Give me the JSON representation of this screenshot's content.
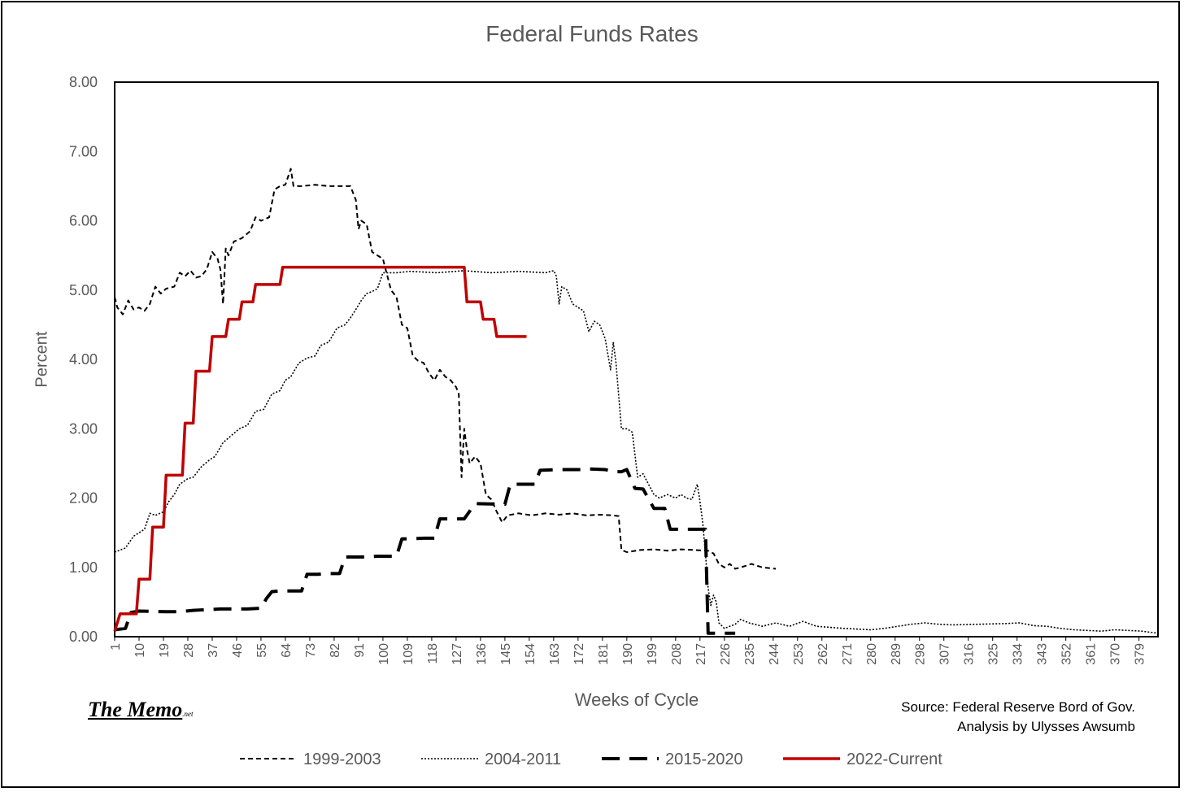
{
  "chart_data": {
    "type": "line",
    "title": "Federal Funds Rates",
    "xlabel": "Weeks of Cycle",
    "ylabel": "Percent",
    "xlim": [
      1,
      386
    ],
    "ylim": [
      0,
      8
    ],
    "y_ticks": [
      "0.00",
      "1.00",
      "2.00",
      "3.00",
      "4.00",
      "5.00",
      "6.00",
      "7.00",
      "8.00"
    ],
    "x_ticks": [
      1,
      10,
      19,
      28,
      37,
      46,
      55,
      64,
      73,
      82,
      91,
      100,
      109,
      118,
      127,
      136,
      145,
      154,
      163,
      172,
      181,
      190,
      199,
      208,
      217,
      226,
      235,
      244,
      253,
      262,
      271,
      280,
      289,
      298,
      307,
      316,
      325,
      334,
      343,
      352,
      361,
      370,
      379
    ],
    "grid": false,
    "legend_position": "bottom",
    "series": [
      {
        "name": "1999-2003",
        "style": "short-dash",
        "color": "#000000",
        "points": [
          [
            1,
            4.9
          ],
          [
            2,
            4.75
          ],
          [
            4,
            4.65
          ],
          [
            6,
            4.85
          ],
          [
            8,
            4.72
          ],
          [
            10,
            4.75
          ],
          [
            12,
            4.7
          ],
          [
            14,
            4.8
          ],
          [
            16,
            5.05
          ],
          [
            18,
            4.95
          ],
          [
            20,
            5.02
          ],
          [
            23,
            5.05
          ],
          [
            25,
            5.25
          ],
          [
            27,
            5.2
          ],
          [
            29,
            5.28
          ],
          [
            31,
            5.18
          ],
          [
            33,
            5.2
          ],
          [
            35,
            5.3
          ],
          [
            37,
            5.55
          ],
          [
            39,
            5.45
          ],
          [
            40,
            5.3
          ],
          [
            41,
            4.8
          ],
          [
            42,
            5.6
          ],
          [
            43,
            5.5
          ],
          [
            45,
            5.7
          ],
          [
            48,
            5.75
          ],
          [
            51,
            5.85
          ],
          [
            53,
            6.05
          ],
          [
            55,
            6.0
          ],
          [
            58,
            6.05
          ],
          [
            60,
            6.45
          ],
          [
            62,
            6.5
          ],
          [
            64,
            6.52
          ],
          [
            66,
            6.75
          ],
          [
            67,
            6.5
          ],
          [
            70,
            6.5
          ],
          [
            75,
            6.52
          ],
          [
            80,
            6.5
          ],
          [
            85,
            6.5
          ],
          [
            88,
            6.5
          ],
          [
            90,
            6.3
          ],
          [
            91,
            5.88
          ],
          [
            92,
            6.0
          ],
          [
            94,
            5.95
          ],
          [
            96,
            5.55
          ],
          [
            98,
            5.5
          ],
          [
            100,
            5.45
          ],
          [
            101,
            5.3
          ],
          [
            103,
            5.0
          ],
          [
            105,
            4.9
          ],
          [
            107,
            4.5
          ],
          [
            109,
            4.45
          ],
          [
            111,
            4.05
          ],
          [
            113,
            3.98
          ],
          [
            115,
            3.95
          ],
          [
            117,
            3.8
          ],
          [
            119,
            3.7
          ],
          [
            121,
            3.85
          ],
          [
            123,
            3.75
          ],
          [
            125,
            3.7
          ],
          [
            127,
            3.6
          ],
          [
            128,
            3.5
          ],
          [
            129,
            2.3
          ],
          [
            130,
            3.0
          ],
          [
            131,
            2.7
          ],
          [
            132,
            2.5
          ],
          [
            134,
            2.6
          ],
          [
            136,
            2.5
          ],
          [
            138,
            2.05
          ],
          [
            140,
            1.98
          ],
          [
            142,
            1.8
          ],
          [
            144,
            1.65
          ],
          [
            146,
            1.75
          ],
          [
            150,
            1.78
          ],
          [
            155,
            1.75
          ],
          [
            160,
            1.78
          ],
          [
            165,
            1.76
          ],
          [
            170,
            1.78
          ],
          [
            175,
            1.75
          ],
          [
            180,
            1.76
          ],
          [
            185,
            1.75
          ],
          [
            187,
            1.74
          ],
          [
            188,
            1.25
          ],
          [
            190,
            1.22
          ],
          [
            195,
            1.25
          ],
          [
            200,
            1.26
          ],
          [
            205,
            1.24
          ],
          [
            210,
            1.26
          ],
          [
            215,
            1.25
          ],
          [
            220,
            1.24
          ],
          [
            222,
            1.2
          ],
          [
            224,
            1.05
          ],
          [
            226,
            1.0
          ],
          [
            228,
            1.05
          ],
          [
            230,
            0.98
          ],
          [
            232,
            1.0
          ],
          [
            236,
            1.05
          ],
          [
            240,
            1.0
          ],
          [
            245,
            0.98
          ]
        ]
      },
      {
        "name": "2004-2011",
        "style": "dotted",
        "color": "#000000",
        "points": [
          [
            1,
            1.22
          ],
          [
            5,
            1.28
          ],
          [
            8,
            1.45
          ],
          [
            12,
            1.55
          ],
          [
            14,
            1.78
          ],
          [
            16,
            1.75
          ],
          [
            19,
            1.8
          ],
          [
            21,
            1.95
          ],
          [
            23,
            2.05
          ],
          [
            25,
            2.2
          ],
          [
            28,
            2.28
          ],
          [
            30,
            2.3
          ],
          [
            33,
            2.45
          ],
          [
            36,
            2.55
          ],
          [
            38,
            2.6
          ],
          [
            41,
            2.8
          ],
          [
            44,
            2.9
          ],
          [
            47,
            3.0
          ],
          [
            50,
            3.05
          ],
          [
            53,
            3.25
          ],
          [
            56,
            3.28
          ],
          [
            59,
            3.5
          ],
          [
            62,
            3.55
          ],
          [
            64,
            3.7
          ],
          [
            66,
            3.75
          ],
          [
            69,
            3.95
          ],
          [
            72,
            4.02
          ],
          [
            75,
            4.05
          ],
          [
            77,
            4.2
          ],
          [
            80,
            4.25
          ],
          [
            83,
            4.45
          ],
          [
            86,
            4.5
          ],
          [
            88,
            4.6
          ],
          [
            90,
            4.72
          ],
          [
            92,
            4.85
          ],
          [
            94,
            4.95
          ],
          [
            96,
            4.98
          ],
          [
            98,
            5.02
          ],
          [
            100,
            5.25
          ],
          [
            105,
            5.25
          ],
          [
            110,
            5.27
          ],
          [
            120,
            5.25
          ],
          [
            130,
            5.28
          ],
          [
            140,
            5.25
          ],
          [
            150,
            5.27
          ],
          [
            160,
            5.25
          ],
          [
            163,
            5.28
          ],
          [
            164,
            5.2
          ],
          [
            165,
            4.8
          ],
          [
            166,
            5.05
          ],
          [
            168,
            5.0
          ],
          [
            170,
            4.8
          ],
          [
            172,
            4.75
          ],
          [
            174,
            4.7
          ],
          [
            176,
            4.4
          ],
          [
            178,
            4.55
          ],
          [
            180,
            4.5
          ],
          [
            182,
            4.3
          ],
          [
            184,
            3.85
          ],
          [
            185,
            4.25
          ],
          [
            186,
            3.95
          ],
          [
            188,
            3.0
          ],
          [
            190,
            3.0
          ],
          [
            192,
            2.95
          ],
          [
            194,
            2.3
          ],
          [
            196,
            2.35
          ],
          [
            198,
            2.2
          ],
          [
            200,
            2.05
          ],
          [
            202,
            2.0
          ],
          [
            205,
            2.05
          ],
          [
            208,
            2.0
          ],
          [
            210,
            2.05
          ],
          [
            212,
            2.0
          ],
          [
            214,
            1.98
          ],
          [
            216,
            2.2
          ],
          [
            217,
            1.95
          ],
          [
            218,
            1.65
          ],
          [
            219,
            1.2
          ],
          [
            220,
            0.7
          ],
          [
            221,
            0.45
          ],
          [
            222,
            0.6
          ],
          [
            223,
            0.5
          ],
          [
            224,
            0.2
          ],
          [
            226,
            0.12
          ],
          [
            228,
            0.15
          ],
          [
            230,
            0.18
          ],
          [
            232,
            0.25
          ],
          [
            235,
            0.2
          ],
          [
            240,
            0.15
          ],
          [
            245,
            0.2
          ],
          [
            250,
            0.15
          ],
          [
            255,
            0.22
          ],
          [
            260,
            0.15
          ],
          [
            270,
            0.12
          ],
          [
            280,
            0.1
          ],
          [
            285,
            0.12
          ],
          [
            290,
            0.15
          ],
          [
            295,
            0.18
          ],
          [
            300,
            0.2
          ],
          [
            305,
            0.18
          ],
          [
            310,
            0.17
          ],
          [
            320,
            0.18
          ],
          [
            330,
            0.19
          ],
          [
            335,
            0.2
          ],
          [
            340,
            0.16
          ],
          [
            345,
            0.15
          ],
          [
            350,
            0.12
          ],
          [
            355,
            0.1
          ],
          [
            360,
            0.09
          ],
          [
            365,
            0.08
          ],
          [
            370,
            0.1
          ],
          [
            375,
            0.09
          ],
          [
            380,
            0.08
          ],
          [
            386,
            0.05
          ]
        ]
      },
      {
        "name": "2015-2020",
        "style": "long-dash",
        "color": "#000000",
        "points": [
          [
            1,
            0.1
          ],
          [
            5,
            0.12
          ],
          [
            7,
            0.35
          ],
          [
            10,
            0.37
          ],
          [
            20,
            0.36
          ],
          [
            25,
            0.36
          ],
          [
            30,
            0.38
          ],
          [
            40,
            0.4
          ],
          [
            50,
            0.4
          ],
          [
            55,
            0.41
          ],
          [
            57,
            0.55
          ],
          [
            59,
            0.65
          ],
          [
            62,
            0.66
          ],
          [
            66,
            0.66
          ],
          [
            70,
            0.66
          ],
          [
            72,
            0.9
          ],
          [
            76,
            0.9
          ],
          [
            80,
            0.91
          ],
          [
            84,
            0.91
          ],
          [
            86,
            1.15
          ],
          [
            92,
            1.15
          ],
          [
            98,
            1.16
          ],
          [
            100,
            1.16
          ],
          [
            105,
            1.16
          ],
          [
            107,
            1.41
          ],
          [
            115,
            1.42
          ],
          [
            119,
            1.42
          ],
          [
            121,
            1.7
          ],
          [
            125,
            1.7
          ],
          [
            130,
            1.7
          ],
          [
            134,
            1.92
          ],
          [
            145,
            1.91
          ],
          [
            147,
            2.2
          ],
          [
            153,
            2.2
          ],
          [
            156,
            2.2
          ],
          [
            158,
            2.4
          ],
          [
            165,
            2.41
          ],
          [
            173,
            2.41
          ],
          [
            176,
            2.42
          ],
          [
            182,
            2.41
          ],
          [
            185,
            2.38
          ],
          [
            188,
            2.38
          ],
          [
            190,
            2.41
          ],
          [
            193,
            2.14
          ],
          [
            196,
            2.13
          ],
          [
            200,
            1.85
          ],
          [
            204,
            1.85
          ],
          [
            206,
            1.55
          ],
          [
            215,
            1.55
          ],
          [
            219,
            1.55
          ],
          [
            220,
            0.05
          ],
          [
            225,
            0.05
          ],
          [
            230,
            0.05
          ]
        ]
      },
      {
        "name": "2022-Current",
        "style": "solid",
        "color": "#c00000",
        "points": [
          [
            1,
            0.08
          ],
          [
            3,
            0.33
          ],
          [
            9,
            0.33
          ],
          [
            10,
            0.83
          ],
          [
            14,
            0.83
          ],
          [
            15,
            1.58
          ],
          [
            19,
            1.58
          ],
          [
            20,
            2.33
          ],
          [
            26,
            2.33
          ],
          [
            27,
            3.08
          ],
          [
            30,
            3.08
          ],
          [
            31,
            3.83
          ],
          [
            36,
            3.83
          ],
          [
            37,
            4.33
          ],
          [
            42,
            4.33
          ],
          [
            43,
            4.58
          ],
          [
            47,
            4.58
          ],
          [
            48,
            4.83
          ],
          [
            52,
            4.83
          ],
          [
            53,
            5.08
          ],
          [
            62,
            5.08
          ],
          [
            63,
            5.33
          ],
          [
            130,
            5.33
          ],
          [
            131,
            4.83
          ],
          [
            136,
            4.83
          ],
          [
            137,
            4.58
          ],
          [
            141,
            4.58
          ],
          [
            142,
            4.33
          ],
          [
            153,
            4.33
          ]
        ]
      }
    ],
    "annotations": {
      "logo": "The Memo",
      "logo_suffix": ".net",
      "source_line1": "Source: Federal Reserve Bord of Gov.",
      "source_line2": "Analysis by Ulysses Awsumb"
    }
  }
}
